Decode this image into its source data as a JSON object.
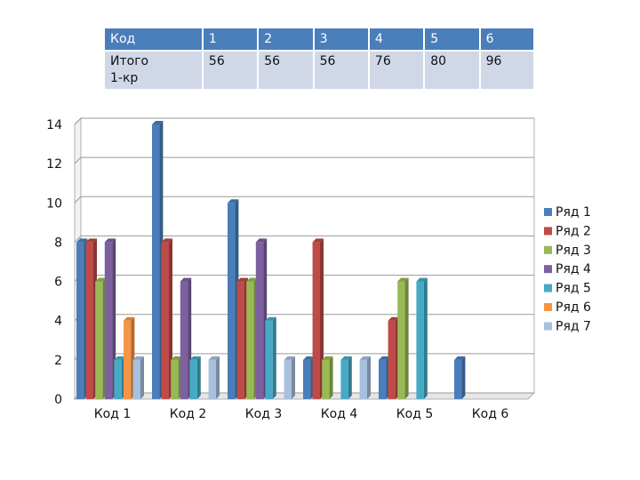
{
  "table": {
    "headers": [
      "Код",
      "1",
      "2",
      "3",
      "4",
      "5",
      "6"
    ],
    "row": [
      "Итого\n1-кр",
      "56",
      "56",
      "56",
      "76",
      "80",
      "96"
    ]
  },
  "chart_data": {
    "type": "bar",
    "categories": [
      "Код 1",
      "Код 2",
      "Код 3",
      "Код 4",
      "Код 5",
      "Код 6"
    ],
    "ylim": [
      0,
      14
    ],
    "yticks": [
      0,
      2,
      4,
      6,
      8,
      10,
      12,
      14
    ],
    "grid": true,
    "legend_position": "right",
    "series": [
      {
        "name": "Ряд 1",
        "color": "#4a7ebb",
        "values": [
          8,
          14,
          10,
          2,
          2,
          2
        ]
      },
      {
        "name": "Ряд 2",
        "color": "#be4b48",
        "values": [
          8,
          8,
          6,
          8,
          4,
          null
        ]
      },
      {
        "name": "Ряд 3",
        "color": "#98b954",
        "values": [
          6,
          2,
          6,
          2,
          6,
          null
        ]
      },
      {
        "name": "Ряд 4",
        "color": "#7d60a0",
        "values": [
          8,
          6,
          8,
          null,
          null,
          null
        ]
      },
      {
        "name": "Ряд 5",
        "color": "#46aac5",
        "values": [
          2,
          2,
          4,
          2,
          6,
          null
        ]
      },
      {
        "name": "Ряд 6",
        "color": "#f69546",
        "values": [
          4,
          null,
          null,
          null,
          null,
          null
        ]
      },
      {
        "name": "Ряд 7",
        "color": "#a7c0de",
        "values": [
          2,
          2,
          2,
          2,
          null,
          null
        ]
      }
    ]
  }
}
